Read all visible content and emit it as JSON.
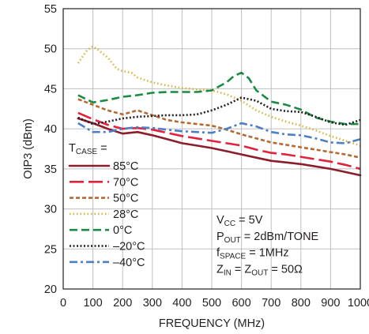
{
  "chart_data": {
    "type": "line",
    "title": "",
    "xlabel": "FREQUENCY (MHz)",
    "ylabel": "OIP3 (dBm)",
    "xlim": [
      0,
      1000
    ],
    "ylim": [
      20,
      55
    ],
    "xticks": [
      0,
      100,
      200,
      300,
      400,
      500,
      600,
      700,
      800,
      900,
      1000
    ],
    "yticks": [
      20,
      25,
      30,
      35,
      40,
      45,
      50,
      55
    ],
    "grid": true,
    "legend_title": {
      "main": "T",
      "sub": "CASE",
      "suffix": " ="
    },
    "legend_placement": "left",
    "series": [
      {
        "name": "85°C",
        "color": "#8b1d2c",
        "dash": "solid",
        "x": [
          50,
          100,
          150,
          200,
          250,
          300,
          350,
          400,
          450,
          500,
          550,
          600,
          650,
          700,
          750,
          800,
          850,
          900,
          950,
          1000
        ],
        "y": [
          41.3,
          40.7,
          40.0,
          39.4,
          39.6,
          39.2,
          38.7,
          38.2,
          37.9,
          37.6,
          37.2,
          36.8,
          36.4,
          36.0,
          35.8,
          35.6,
          35.3,
          35.0,
          34.6,
          34.2
        ]
      },
      {
        "name": "70°C",
        "color": "#e2233b",
        "dash": "long",
        "x": [
          50,
          100,
          150,
          200,
          250,
          300,
          350,
          400,
          450,
          500,
          550,
          600,
          650,
          700,
          750,
          800,
          850,
          900,
          950,
          1000
        ],
        "y": [
          42.0,
          41.2,
          40.5,
          40.0,
          40.1,
          39.9,
          39.5,
          39.1,
          38.8,
          38.5,
          38.2,
          37.9,
          37.4,
          37.0,
          36.8,
          36.5,
          36.2,
          35.9,
          35.5,
          35.0
        ]
      },
      {
        "name": "50°C",
        "color": "#b66a33",
        "dash": "short",
        "x": [
          50,
          100,
          150,
          200,
          250,
          300,
          350,
          400,
          450,
          500,
          550,
          600,
          650,
          700,
          750,
          800,
          850,
          900,
          950,
          1000
        ],
        "y": [
          43.7,
          43.0,
          42.3,
          41.8,
          42.3,
          41.7,
          41.1,
          40.8,
          40.6,
          40.4,
          39.9,
          39.3,
          38.8,
          38.3,
          38.0,
          37.7,
          37.4,
          37.1,
          36.8,
          36.4
        ]
      },
      {
        "name": "28°C",
        "color": "#d7b43a",
        "dash": "dot",
        "x": [
          50,
          80,
          100,
          120,
          150,
          180,
          200,
          230,
          250,
          300,
          350,
          400,
          450,
          500,
          550,
          600,
          650,
          700,
          750,
          800,
          850,
          900,
          950,
          1000
        ],
        "y": [
          48.2,
          49.8,
          50.3,
          49.8,
          48.9,
          47.5,
          47.2,
          47.0,
          46.4,
          45.8,
          45.4,
          45.1,
          44.9,
          44.8,
          44.3,
          43.5,
          42.3,
          41.5,
          40.9,
          40.4,
          39.8,
          39.1,
          38.5,
          37.9
        ]
      },
      {
        "name": "0°C",
        "color": "#1c8a43",
        "dash": "mediumdash",
        "x": [
          50,
          100,
          150,
          200,
          250,
          300,
          350,
          400,
          450,
          500,
          550,
          575,
          600,
          625,
          650,
          700,
          750,
          800,
          850,
          900,
          950,
          1000
        ],
        "y": [
          44.2,
          43.3,
          43.6,
          44.0,
          44.2,
          44.5,
          44.6,
          44.6,
          44.6,
          44.8,
          45.8,
          46.6,
          47.0,
          46.3,
          44.8,
          43.4,
          43.0,
          42.4,
          41.4,
          40.9,
          40.6,
          40.6
        ]
      },
      {
        "name": "–20°C",
        "color": "#231f20",
        "dash": "fine",
        "x": [
          50,
          100,
          150,
          200,
          250,
          300,
          350,
          400,
          450,
          500,
          550,
          600,
          650,
          700,
          750,
          800,
          850,
          900,
          950,
          1000
        ],
        "y": [
          41.4,
          40.6,
          40.9,
          41.3,
          41.5,
          41.6,
          41.7,
          41.7,
          41.8,
          42.3,
          43.0,
          43.9,
          43.5,
          42.5,
          42.2,
          42.1,
          41.5,
          40.8,
          40.5,
          41.1
        ]
      },
      {
        "name": "–40°C",
        "color": "#4d7fc4",
        "dash": "dashdot",
        "x": [
          50,
          100,
          150,
          200,
          250,
          300,
          350,
          400,
          450,
          500,
          550,
          600,
          650,
          700,
          750,
          800,
          850,
          900,
          950,
          1000
        ],
        "y": [
          40.7,
          39.6,
          39.6,
          40.0,
          40.2,
          40.1,
          39.9,
          39.7,
          39.6,
          39.5,
          40.0,
          40.7,
          40.3,
          39.6,
          39.3,
          39.2,
          38.8,
          38.3,
          38.2,
          38.7
        ]
      }
    ],
    "annotations": [
      {
        "main": "V",
        "sub": "CC",
        "rest": " = 5V"
      },
      {
        "main": "P",
        "sub": "OUT",
        "rest": " = 2dBm/TONE"
      },
      {
        "main": "f",
        "sub": "SPACE",
        "rest": " = 1MHz"
      },
      {
        "main": "Z",
        "sub": "IN",
        "mid": " = Z",
        "sub2": "OUT",
        "rest": " = 50Ω"
      }
    ]
  }
}
